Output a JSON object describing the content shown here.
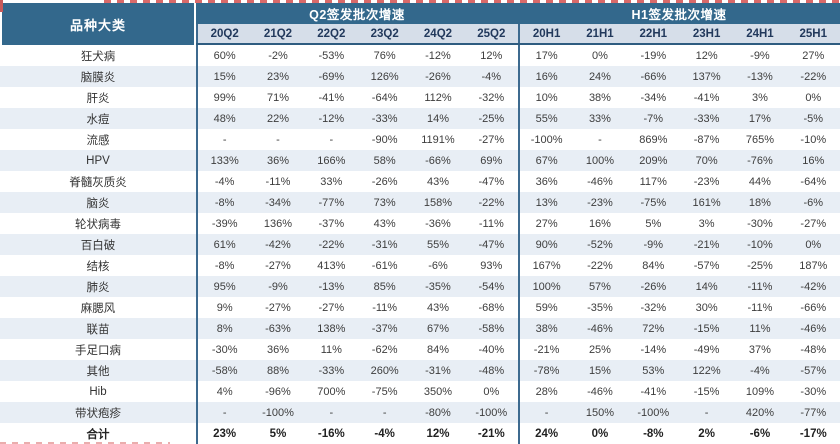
{
  "chart_data": {
    "type": "table",
    "corner_header": "品种大类",
    "column_groups": [
      {
        "label": "Q2签发批次增速",
        "columns": [
          "20Q2",
          "21Q2",
          "22Q2",
          "23Q2",
          "24Q2",
          "25Q2"
        ]
      },
      {
        "label": "H1签发批次增速",
        "columns": [
          "20H1",
          "21H1",
          "22H1",
          "23H1",
          "24H1",
          "25H1"
        ]
      }
    ],
    "rows": [
      {
        "label": "狂犬病",
        "values": [
          "60%",
          "-2%",
          "-53%",
          "76%",
          "-12%",
          "12%",
          "17%",
          "0%",
          "-19%",
          "12%",
          "-9%",
          "27%"
        ]
      },
      {
        "label": "脑膜炎",
        "values": [
          "15%",
          "23%",
          "-69%",
          "126%",
          "-26%",
          "-4%",
          "16%",
          "24%",
          "-66%",
          "137%",
          "-13%",
          "-22%"
        ]
      },
      {
        "label": "肝炎",
        "values": [
          "99%",
          "71%",
          "-41%",
          "-64%",
          "112%",
          "-32%",
          "10%",
          "38%",
          "-34%",
          "-41%",
          "3%",
          "0%"
        ]
      },
      {
        "label": "水痘",
        "values": [
          "48%",
          "22%",
          "-12%",
          "-33%",
          "14%",
          "-25%",
          "55%",
          "33%",
          "-7%",
          "-33%",
          "17%",
          "-5%"
        ]
      },
      {
        "label": "流感",
        "values": [
          "-",
          "-",
          "-",
          "-90%",
          "1191%",
          "-27%",
          "-100%",
          "-",
          "869%",
          "-87%",
          "765%",
          "-10%"
        ]
      },
      {
        "label": "HPV",
        "values": [
          "133%",
          "36%",
          "166%",
          "58%",
          "-66%",
          "69%",
          "67%",
          "100%",
          "209%",
          "70%",
          "-76%",
          "16%"
        ]
      },
      {
        "label": "脊髓灰质炎",
        "values": [
          "-4%",
          "-11%",
          "33%",
          "-26%",
          "43%",
          "-47%",
          "36%",
          "-46%",
          "117%",
          "-23%",
          "44%",
          "-64%"
        ]
      },
      {
        "label": "脑炎",
        "values": [
          "-8%",
          "-34%",
          "-77%",
          "73%",
          "158%",
          "-22%",
          "13%",
          "-23%",
          "-75%",
          "161%",
          "18%",
          "-6%"
        ]
      },
      {
        "label": "轮状病毒",
        "values": [
          "-39%",
          "136%",
          "-37%",
          "43%",
          "-36%",
          "-11%",
          "27%",
          "16%",
          "5%",
          "3%",
          "-30%",
          "-27%"
        ]
      },
      {
        "label": "百白破",
        "values": [
          "61%",
          "-42%",
          "-22%",
          "-31%",
          "55%",
          "-47%",
          "90%",
          "-52%",
          "-9%",
          "-21%",
          "-10%",
          "0%"
        ]
      },
      {
        "label": "结核",
        "values": [
          "-8%",
          "-27%",
          "413%",
          "-61%",
          "-6%",
          "93%",
          "167%",
          "-22%",
          "84%",
          "-57%",
          "-25%",
          "187%"
        ]
      },
      {
        "label": "肺炎",
        "values": [
          "95%",
          "-9%",
          "-13%",
          "85%",
          "-35%",
          "-54%",
          "100%",
          "57%",
          "-26%",
          "14%",
          "-11%",
          "-42%"
        ]
      },
      {
        "label": "麻腮风",
        "values": [
          "9%",
          "-27%",
          "-27%",
          "-11%",
          "43%",
          "-68%",
          "59%",
          "-35%",
          "-32%",
          "30%",
          "-11%",
          "-66%"
        ]
      },
      {
        "label": "联苗",
        "values": [
          "8%",
          "-63%",
          "138%",
          "-37%",
          "67%",
          "-58%",
          "38%",
          "-46%",
          "72%",
          "-15%",
          "11%",
          "-46%"
        ]
      },
      {
        "label": "手足口病",
        "values": [
          "-30%",
          "36%",
          "11%",
          "-62%",
          "84%",
          "-40%",
          "-21%",
          "25%",
          "-14%",
          "-49%",
          "37%",
          "-48%"
        ]
      },
      {
        "label": "其他",
        "values": [
          "-58%",
          "88%",
          "-33%",
          "260%",
          "-31%",
          "-48%",
          "-78%",
          "15%",
          "53%",
          "122%",
          "-4%",
          "-57%"
        ]
      },
      {
        "label": "Hib",
        "values": [
          "4%",
          "-96%",
          "700%",
          "-75%",
          "350%",
          "0%",
          "28%",
          "-46%",
          "-41%",
          "-15%",
          "109%",
          "-30%"
        ]
      },
      {
        "label": "带状疱疹",
        "values": [
          "-",
          "-100%",
          "-",
          "-",
          "-80%",
          "-100%",
          "-",
          "150%",
          "-100%",
          "-",
          "420%",
          "-77%"
        ]
      },
      {
        "label": "合计",
        "values": [
          "23%",
          "5%",
          "-16%",
          "-4%",
          "12%",
          "-21%",
          "24%",
          "0%",
          "-8%",
          "2%",
          "-6%",
          "-17%"
        ],
        "bold": true
      }
    ],
    "layout_hints": {
      "striped_rows": "even rows shaded",
      "group_divider_after_column": 6
    }
  },
  "colors": {
    "header_bg": "#33688C",
    "subheader_bg": "#D6DEE9",
    "subheader_text": "#22395C",
    "stripe_bg": "#E8EEF5",
    "divider": "#3D6A8F",
    "cell_text": "#3d3d3d",
    "artifact_red": "#d96a6a"
  }
}
